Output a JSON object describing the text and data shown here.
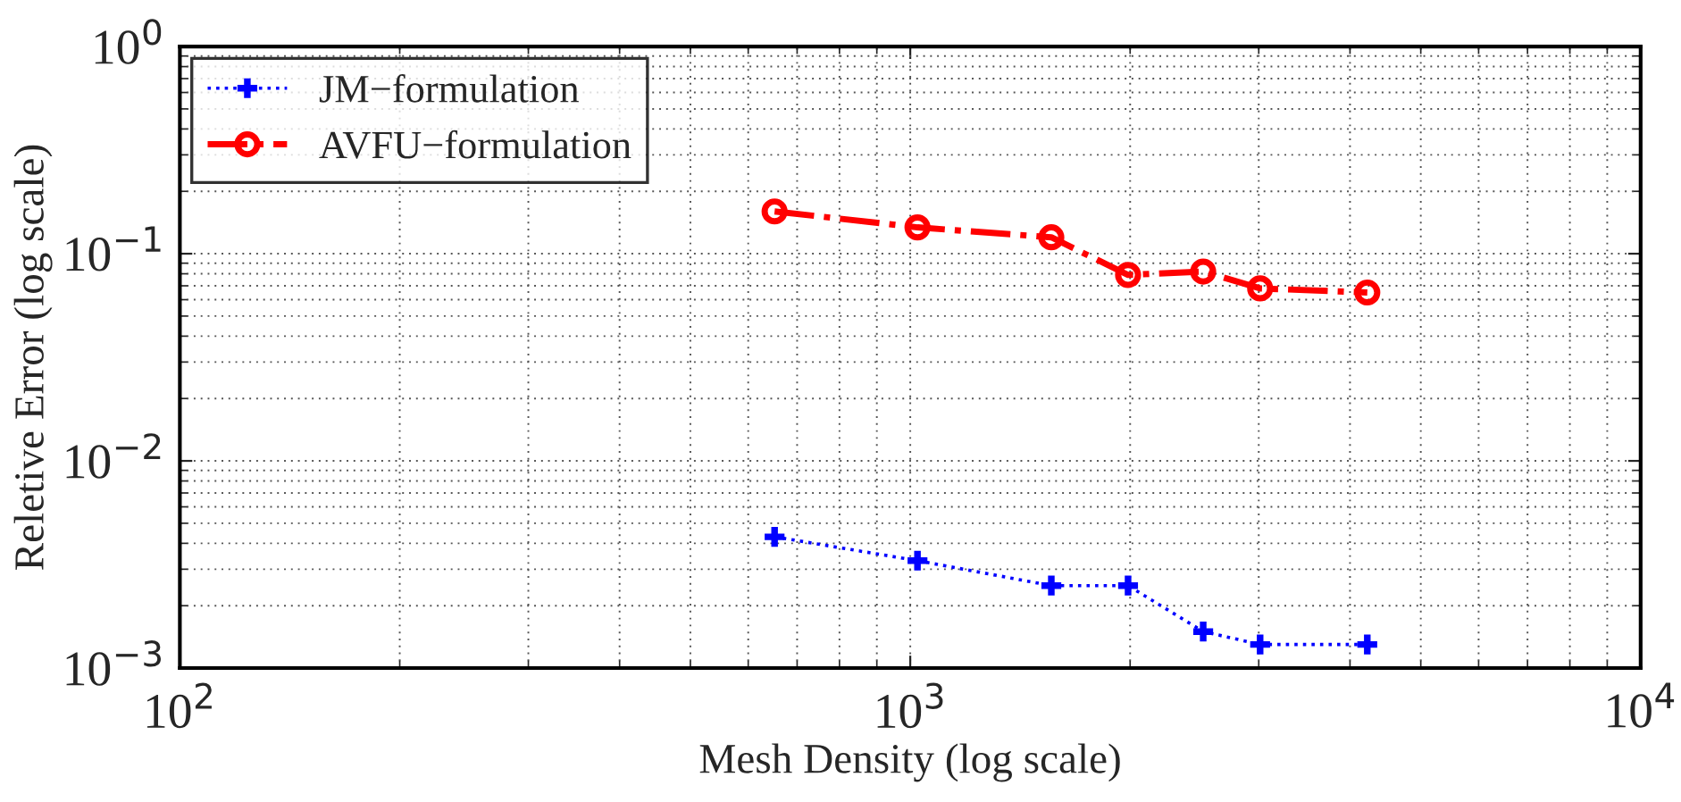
{
  "chart_data": {
    "type": "line",
    "xlabel": "Mesh Density (log scale)",
    "ylabel": "Reletive Error (log scale)",
    "log": "xy",
    "grid": true,
    "legend": "top left",
    "xlim": [
      100,
      10000
    ],
    "ylim": [
      0.001,
      1
    ],
    "xticks": [
      {
        "value": 100,
        "label": "10$^{2}$"
      },
      {
        "value": 1000,
        "label": "10$^{3}$"
      },
      {
        "value": 10000,
        "label": "10$^{4}$"
      }
    ],
    "yticks": [
      {
        "value": 0.001,
        "label": "10$^{−3}$"
      },
      {
        "value": 0.01,
        "label": "10$^{−2}$"
      },
      {
        "value": 0.1,
        "label": "10$^{−1}$"
      },
      {
        "value": 1,
        "label": "10$^{0}$"
      }
    ],
    "x": [
      652,
      1023,
      1560,
      1987,
      2518,
      3013,
      4224
    ],
    "series": [
      {
        "name": "JM−formulation",
        "color": "#0000ff",
        "marker": "cross",
        "line_style": "dotted",
        "values": [
          0.0043,
          0.0033,
          0.0025,
          0.0025,
          0.0015,
          0.0013,
          0.0013
        ]
      },
      {
        "name": "AVFU−formulation",
        "color": "#ff0000",
        "marker": "circle",
        "line_style": "dashed",
        "values": [
          0.16,
          0.134,
          0.12,
          0.079,
          0.082,
          0.068,
          0.065
        ]
      }
    ]
  }
}
